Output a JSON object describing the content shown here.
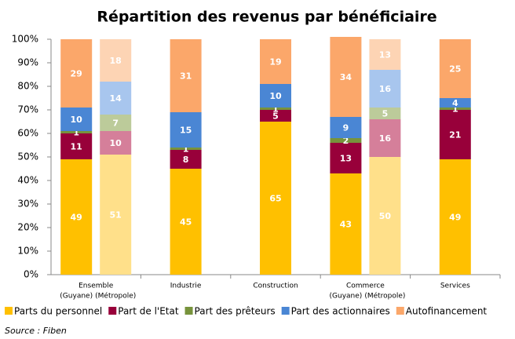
{
  "chart_data": {
    "type": "stacked-bar",
    "title": "Répartition des revenus par bénéficiaire",
    "groups": [
      {
        "name": "Ensemble",
        "categories": [
          "(Guyane)",
          "(Métropole)"
        ]
      },
      {
        "name": "Industrie",
        "categories": [
          null
        ]
      },
      {
        "name": "Construction",
        "categories": [
          null
        ]
      },
      {
        "name": "Commerce",
        "categories": [
          "(Guyane)",
          "(Métropole)"
        ]
      },
      {
        "name": "Services",
        "categories": [
          null
        ]
      }
    ],
    "series": [
      {
        "name": "Parts du personnel",
        "color": "#ffc000",
        "colors": [
          "#ffc000",
          "#ffe08a",
          "#ffc000",
          "#ffc000",
          "#ffc000",
          "#ffe08a",
          "#ffc000"
        ],
        "values": [
          49,
          51,
          45,
          65,
          43,
          50,
          49
        ]
      },
      {
        "name": "Part de l'Etat",
        "color": "#98003a",
        "colors": [
          "#98003a",
          "#d57f9a",
          "#98003a",
          "#98003a",
          "#98003a",
          "#d57f9a",
          "#98003a"
        ],
        "values": [
          11,
          10,
          8,
          5,
          13,
          16,
          21
        ]
      },
      {
        "name": "Part des prêteurs",
        "color": "#77933c",
        "colors": [
          "#77933c",
          "#bccb9a",
          "#77933c",
          "#77933c",
          "#77933c",
          "#bccb9a",
          "#77933c"
        ],
        "values": [
          1,
          7,
          1,
          1,
          2,
          5,
          1
        ]
      },
      {
        "name": "Part des actionnaires",
        "color": "#4a86d4",
        "colors": [
          "#4a86d4",
          "#a8c6ee",
          "#4a86d4",
          "#4a86d4",
          "#4a86d4",
          "#a8c6ee",
          "#4a86d4"
        ],
        "values": [
          10,
          14,
          15,
          10,
          9,
          16,
          4
        ]
      },
      {
        "name": "Autofinancement",
        "color": "#fba76a",
        "colors": [
          "#fba76a",
          "#fdd4b4",
          "#fba76a",
          "#fba76a",
          "#fba76a",
          "#fdd4b4",
          "#fba76a"
        ],
        "values": [
          29,
          18,
          31,
          19,
          34,
          13,
          25
        ]
      }
    ],
    "ylim": [
      0,
      100
    ],
    "yticks": [
      {
        "value": 0,
        "label": "0%"
      },
      {
        "value": 10,
        "label": "10%"
      },
      {
        "value": 20,
        "label": "20%"
      },
      {
        "value": 30,
        "label": "30%"
      },
      {
        "value": 40,
        "label": "40%"
      },
      {
        "value": 50,
        "label": "50%"
      },
      {
        "value": 60,
        "label": "60%"
      },
      {
        "value": 70,
        "label": "70%"
      },
      {
        "value": 80,
        "label": "80%"
      },
      {
        "value": 90,
        "label": "90%"
      },
      {
        "value": 100,
        "label": "100%"
      }
    ],
    "legend": "bottom",
    "source": "Source : Fiben"
  }
}
